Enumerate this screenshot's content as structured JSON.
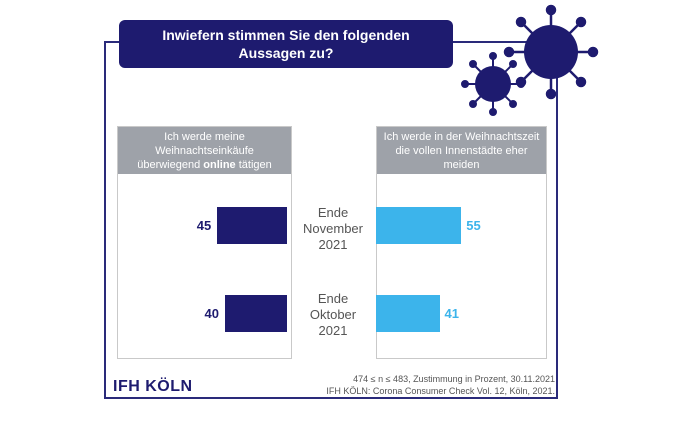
{
  "title_line1": "Inwiefern stimmen Sie den folgenden",
  "title_line2": "Aussagen zu?",
  "chart_data": {
    "type": "bar",
    "orientation": "horizontal",
    "categories": [
      {
        "line1": "Ende",
        "line2": "November",
        "line3": "2021"
      },
      {
        "line1": "Ende",
        "line2": "Oktober",
        "line3": "2021"
      }
    ],
    "series": [
      {
        "name_line1": "Ich werde meine",
        "name_line2": "Weihnachtseinkäufe",
        "name_line3_pre": "überwiegend ",
        "name_line3_bold": "online",
        "name_line3_post": " tätigen",
        "values": [
          45,
          40
        ],
        "color": "#1e1b6f",
        "value_labels": [
          "45",
          "40"
        ]
      },
      {
        "name_line1": "Ich werde in der Weihnachtszeit",
        "name_line2": "die vollen Innenstädte eher",
        "name_line3": "meiden",
        "values": [
          55,
          41
        ],
        "color": "#3cb4eb",
        "value_labels": [
          "55",
          "41"
        ]
      }
    ],
    "unit": "Prozent"
  },
  "logo": "IFH KÖLN",
  "footnote_line1": "474 ≤ n ≤ 483, Zustimmung in Prozent, 30.11.2021",
  "footnote_line2": "IFH KÖLN: Corona Consumer Check Vol. 12, Köln, 2021.",
  "decor_icon": "coronavirus-icon",
  "colors": {
    "navy": "#1e1b6f",
    "cyan": "#3cb4eb",
    "grey": "#9ea2a9"
  }
}
